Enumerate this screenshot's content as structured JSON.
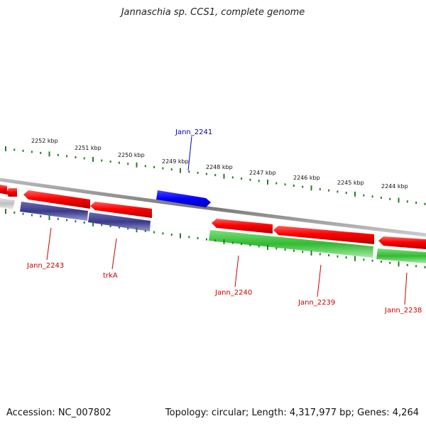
{
  "title": "Jannaschia sp. CCS1, complete genome",
  "footer": {
    "accession": "Accession: NC_007802",
    "summary": "Topology: circular; Length: 4,317,977 bp; Genes: 4,264"
  },
  "scale_labels": [
    "2252 kbp",
    "2251 kbp",
    "2250 kbp",
    "2249 kbp",
    "2248 kbp",
    "2247 kbp",
    "2246 kbp",
    "2245 kbp",
    "2244 kbp"
  ],
  "gene_labels": [
    "Jann_2241",
    "Jann_2243",
    "trkA",
    "Jann_2240",
    "Jann_2239",
    "Jann_2238"
  ],
  "colors": {
    "forward_cds": "#0000ff",
    "reverse_cds": "#ff0000",
    "trna_track": "#3a3a8a",
    "green_track": "#33bb33",
    "grey_track": "#c8c8c8",
    "backbone": "#888888",
    "ticks": "#2a7a2a",
    "label_red": "#cc0000",
    "label_blue": "#0000aa"
  }
}
